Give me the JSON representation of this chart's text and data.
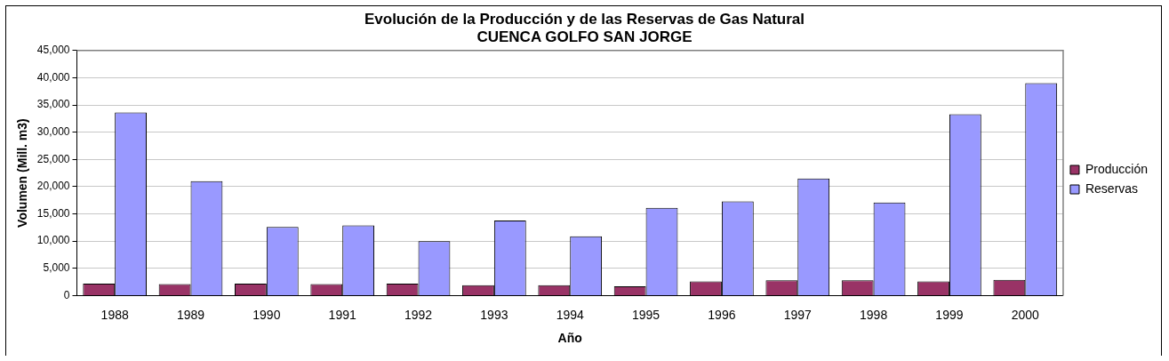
{
  "chart_data": {
    "type": "bar",
    "title": "Evolución de la Producción y de las Reservas de Gas Natural\nCUENCA GOLFO SAN JORGE",
    "xlabel": "Año",
    "ylabel": "Volumen (Mill. m3)",
    "categories": [
      "1988",
      "1989",
      "1990",
      "1991",
      "1992",
      "1993",
      "1994",
      "1995",
      "1996",
      "1997",
      "1998",
      "1999",
      "2000"
    ],
    "series": [
      {
        "name": "Producción",
        "color": "#993366",
        "values": [
          2200,
          2100,
          2200,
          2100,
          2200,
          1900,
          1900,
          1700,
          2600,
          2800,
          2800,
          2600,
          2900
        ]
      },
      {
        "name": "Reservas",
        "color": "#9999ff",
        "values": [
          33600,
          21000,
          12600,
          12900,
          10000,
          13800,
          10900,
          16100,
          17300,
          21500,
          17100,
          33300,
          39000
        ]
      }
    ],
    "ylim": [
      0,
      45000
    ],
    "yticks": [
      {
        "value": 0,
        "label": "0"
      },
      {
        "value": 5000,
        "label": "5,000"
      },
      {
        "value": 10000,
        "label": "10,000"
      },
      {
        "value": 15000,
        "label": "15,000"
      },
      {
        "value": 20000,
        "label": "20,000"
      },
      {
        "value": 25000,
        "label": "25,000"
      },
      {
        "value": 30000,
        "label": "30,000"
      },
      {
        "value": 35000,
        "label": "35,000"
      },
      {
        "value": 40000,
        "label": "40,000"
      },
      {
        "value": 45000,
        "label": "45,000"
      }
    ],
    "grid": "y",
    "legend": "right"
  }
}
